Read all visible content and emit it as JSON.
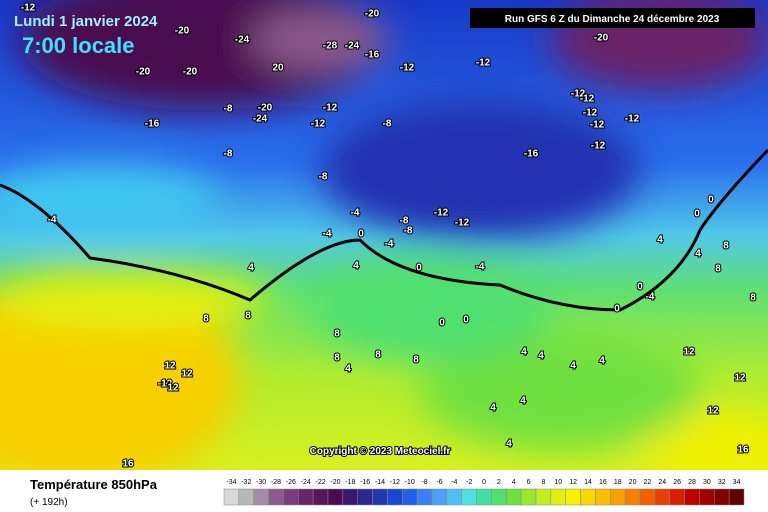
{
  "header": {
    "date": "Lundi 1 janvier 2024",
    "time": "7:00 locale",
    "run": "Run GFS 6 Z du Dimanche 24 décembre 2023",
    "copyright": "Copyright © 2023 Meteociel.fr"
  },
  "footer": {
    "title": "Température 850hPa",
    "lead": "(+ 192h)"
  },
  "legend": {
    "values": [
      -34,
      -32,
      -30,
      -28,
      -26,
      -24,
      -22,
      -20,
      -18,
      -16,
      -14,
      -12,
      -10,
      -8,
      -6,
      -4,
      -2,
      0,
      2,
      4,
      6,
      8,
      10,
      12,
      14,
      16,
      18,
      20,
      22,
      24,
      26,
      28,
      30,
      32,
      34
    ],
    "colors": [
      "#d8d8d8",
      "#b8b8b8",
      "#a88aa8",
      "#8c5a8c",
      "#7a3c7a",
      "#6a2468",
      "#5a1458",
      "#4a0c50",
      "#3a1870",
      "#2c2890",
      "#2038b0",
      "#1848d0",
      "#2060e8",
      "#3a80f0",
      "#4aa0f4",
      "#50c0f0",
      "#50e0e0",
      "#40e0a0",
      "#50e070",
      "#70e040",
      "#98e830",
      "#c0f020",
      "#e0f010",
      "#f8f000",
      "#f8d800",
      "#f8c000",
      "#f8a000",
      "#f88000",
      "#f06000",
      "#e84000",
      "#d82000",
      "#c00000",
      "#a00000",
      "#800000",
      "#600000"
    ]
  },
  "map_labels": [
    -12,
    -20,
    -20,
    -24,
    -28,
    -24,
    -16,
    -20,
    -20,
    20,
    -12,
    -12,
    -20,
    -12,
    -12,
    -12,
    -12,
    -12,
    -12,
    -16,
    -16,
    -8,
    -20,
    -24,
    -12,
    -12,
    -8,
    -8,
    -8,
    -4,
    -4,
    -4,
    0,
    -4,
    -8,
    -8,
    -12,
    -12,
    -4,
    0,
    4,
    8,
    8,
    0,
    0,
    4,
    8,
    8,
    4,
    8,
    8,
    12,
    12,
    -12,
    12,
    16,
    12,
    16,
    8,
    8,
    4,
    0,
    0,
    4,
    -4,
    0,
    0,
    4,
    4,
    4,
    4,
    4,
    4,
    4,
    12,
    8,
    12
  ]
}
